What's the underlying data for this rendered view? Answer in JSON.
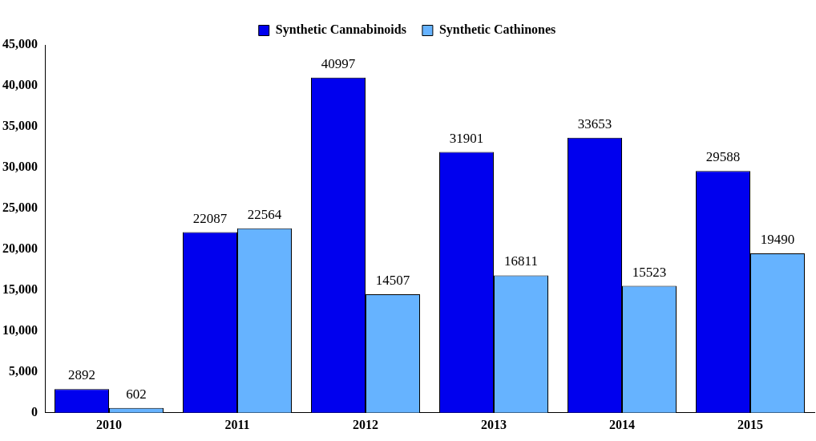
{
  "chart_data": {
    "type": "bar",
    "categories": [
      "2010",
      "2011",
      "2012",
      "2013",
      "2014",
      "2015"
    ],
    "series": [
      {
        "name": "Synthetic Cannabinoids",
        "color": "#0000ee",
        "values": [
          2892,
          22087,
          40997,
          31901,
          33653,
          29588
        ]
      },
      {
        "name": "Synthetic Cathinones",
        "color": "#66b3ff",
        "values": [
          602,
          22564,
          14507,
          16811,
          15523,
          19490
        ]
      }
    ],
    "ylim": [
      0,
      45000
    ],
    "yticks": [
      0,
      {
        "value": 5000,
        "label": "5,000"
      },
      {
        "value": 10000,
        "label": "10,000"
      },
      {
        "value": 15000,
        "label": "15,000"
      },
      {
        "value": 20000,
        "label": "20,000"
      },
      {
        "value": 25000,
        "label": "25,000"
      },
      {
        "value": 30000,
        "label": "30,000"
      },
      {
        "value": 35000,
        "label": "35,000"
      },
      {
        "value": 40000,
        "label": "40,000"
      },
      {
        "value": 45000,
        "label": "45,000"
      }
    ],
    "grid": false,
    "legend": "top",
    "data_labels": true
  }
}
